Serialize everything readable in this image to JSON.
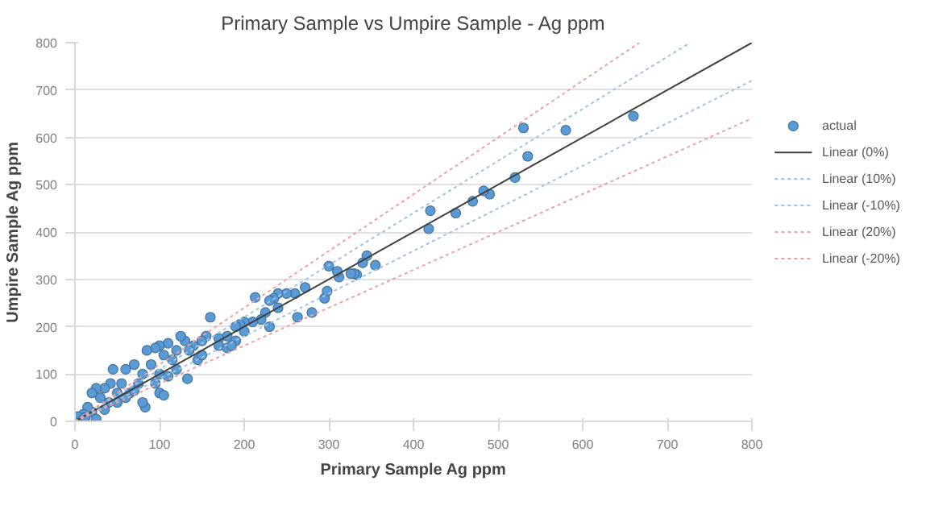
{
  "chart_data": {
    "type": "scatter",
    "title": "Primary Sample vs Umpire Sample - Ag ppm",
    "xlabel": "Primary Sample Ag ppm",
    "ylabel": "Umpire Sample Ag ppm",
    "xlim": [
      0,
      800
    ],
    "ylim": [
      0,
      800
    ],
    "xticks": [
      0,
      100,
      200,
      300,
      400,
      500,
      600,
      700,
      800
    ],
    "yticks": [
      0,
      100,
      200,
      300,
      400,
      500,
      600,
      700,
      800
    ],
    "grid": "y",
    "legend": "right",
    "series": [
      {
        "name": "actual",
        "marker": "circle",
        "color": "#5b9bd5",
        "x": [
          660,
          580,
          530,
          535,
          520,
          490,
          483,
          470,
          450,
          420,
          418,
          355,
          345,
          340,
          333,
          330,
          326,
          312,
          310,
          300,
          295,
          298,
          280,
          272,
          263,
          260,
          250,
          240,
          235,
          230,
          225,
          220,
          213,
          210,
          200,
          195,
          190,
          180,
          170,
          160,
          155,
          150,
          145,
          140,
          133,
          130,
          125,
          120,
          115,
          110,
          105,
          100,
          95,
          90,
          85,
          83,
          80,
          80,
          75,
          70,
          65,
          60,
          55,
          50,
          45,
          42,
          40,
          35,
          30,
          25,
          20,
          20,
          15,
          10,
          3,
          8,
          25,
          50,
          60,
          100,
          100,
          120,
          150,
          170,
          180,
          110,
          70,
          35,
          12,
          200,
          230,
          240,
          190,
          185,
          135,
          95,
          105
        ],
        "values": [
          645,
          615,
          620,
          560,
          515,
          480,
          487,
          465,
          440,
          445,
          407,
          330,
          350,
          335,
          310,
          312,
          312,
          305,
          317,
          328,
          260,
          275,
          230,
          283,
          220,
          270,
          270,
          270,
          260,
          255,
          230,
          215,
          262,
          210,
          210,
          205,
          170,
          180,
          175,
          220,
          180,
          170,
          130,
          160,
          90,
          170,
          180,
          150,
          130,
          165,
          140,
          160,
          155,
          120,
          150,
          30,
          40,
          100,
          80,
          120,
          60,
          110,
          80,
          60,
          110,
          80,
          40,
          70,
          50,
          70,
          60,
          20,
          30,
          15,
          10,
          2,
          5,
          40,
          50,
          60,
          100,
          110,
          140,
          160,
          155,
          95,
          65,
          25,
          8,
          190,
          200,
          240,
          200,
          160,
          150,
          80,
          55
        ]
      },
      {
        "name": "Linear (0%)",
        "type": "line",
        "color": "#404040",
        "marker": "none",
        "line_style": "solid",
        "x": [
          0,
          800
        ],
        "values": [
          0,
          800
        ]
      },
      {
        "name": "Linear (10%)",
        "type": "line",
        "color": "#9dc3e6",
        "marker": "none",
        "line_style": "dotted",
        "x": [
          0,
          727
        ],
        "values": [
          0,
          800
        ]
      },
      {
        "name": "Linear (-10%)",
        "type": "line",
        "color": "#9dc3e6",
        "marker": "none",
        "line_style": "dotted",
        "x": [
          0,
          800
        ],
        "values": [
          0,
          720
        ]
      },
      {
        "name": "Linear (20%)",
        "type": "line",
        "color": "#f4a09a",
        "marker": "none",
        "line_style": "dotted",
        "x": [
          0,
          667
        ],
        "values": [
          0,
          800
        ]
      },
      {
        "name": "Linear (-20%)",
        "type": "line",
        "color": "#f4a09a",
        "marker": "none",
        "line_style": "dotted",
        "x": [
          0,
          800
        ],
        "values": [
          0,
          640
        ]
      }
    ]
  }
}
